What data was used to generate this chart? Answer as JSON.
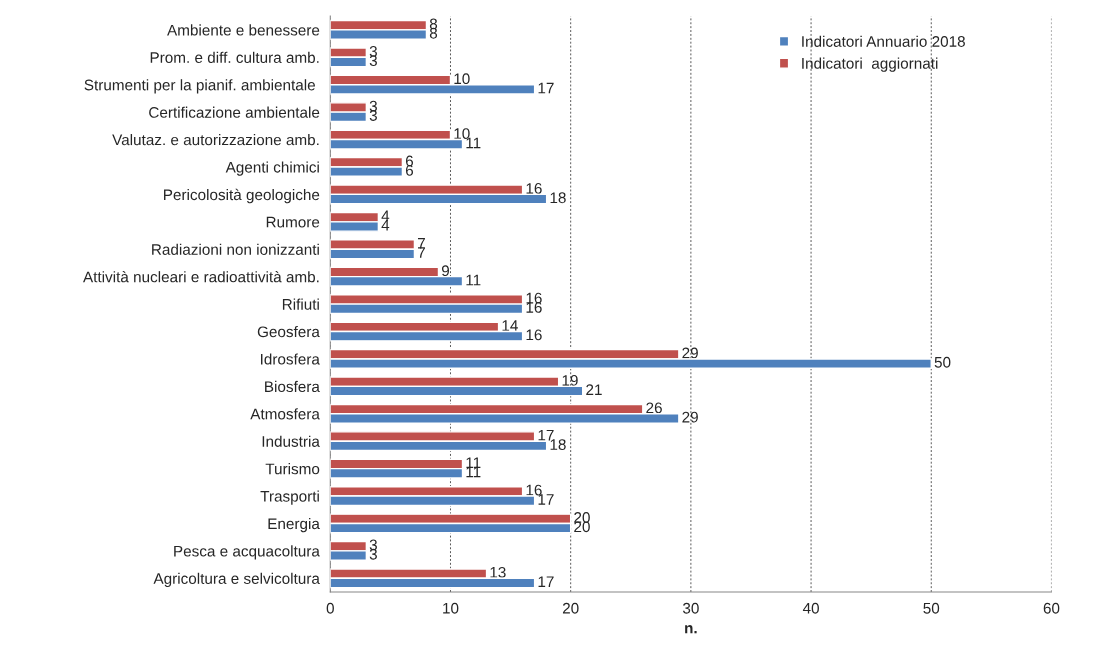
{
  "chart_data": {
    "type": "bar",
    "orientation": "horizontal",
    "xlabel": "n.",
    "categories": [
      "Ambiente e benessere",
      "Prom. e diff. cultura amb.",
      "Strumenti per la pianif. ambientale ",
      "Certificazione ambientale",
      "Valutaz. e autorizzazione amb.",
      "Agenti chimici",
      "Pericolosità geologiche",
      "Rumore",
      "Radiazioni non ionizzanti",
      "Attività nucleari e radioattività amb.",
      "Rifiuti",
      "Geosfera",
      "Idrosfera",
      "Biosfera",
      "Atmosfera",
      "Industria",
      "Turismo",
      "Trasporti",
      "Energia",
      "Pesca e acquacoltura",
      "Agricoltura e selvicoltura"
    ],
    "series": [
      {
        "name": "Indicatori  aggiornati",
        "color": "#c0504d",
        "values": [
          8,
          3,
          10,
          3,
          10,
          6,
          16,
          4,
          7,
          9,
          16,
          14,
          29,
          19,
          26,
          17,
          11,
          16,
          20,
          3,
          13
        ]
      },
      {
        "name": "Indicatori Annuario 2018",
        "color": "#4f81bd",
        "values": [
          8,
          3,
          17,
          3,
          11,
          6,
          18,
          4,
          7,
          11,
          16,
          16,
          50,
          21,
          29,
          18,
          11,
          17,
          20,
          3,
          17
        ]
      }
    ],
    "xlim": [
      0,
      60
    ],
    "xticks": [
      0,
      10,
      20,
      30,
      40,
      50,
      60
    ],
    "grid": "x",
    "legend": "top right",
    "data_labels": true
  }
}
